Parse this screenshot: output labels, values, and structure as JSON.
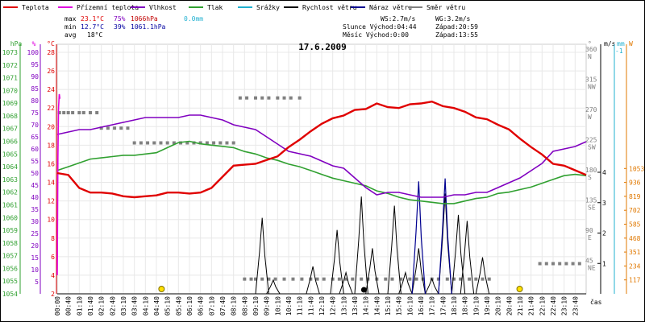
{
  "legend": {
    "items": [
      {
        "label": "Teplota",
        "color": "#e00000"
      },
      {
        "label": "Přízemní teplota",
        "color": "#e000e0"
      },
      {
        "label": "Vlhkost",
        "color": "#8000c0"
      },
      {
        "label": "Tlak",
        "color": "#30a030"
      },
      {
        "label": "Srážky",
        "color": "#20b0d0"
      },
      {
        "label": "Rychlost větru",
        "color": "#000000"
      },
      {
        "label": "Náraz větru",
        "color": "#000090"
      },
      {
        "label": "Směr větru",
        "color": "#808080"
      }
    ]
  },
  "stats": {
    "max": {
      "label": "max",
      "temp": "23.1°C",
      "hum": "75%",
      "press": "1066hPa",
      "rain": "0.0mm"
    },
    "min": {
      "label": "min",
      "temp": "12.7°C",
      "hum": "39%",
      "press": "1061.1hPa"
    },
    "avg": {
      "label": "avg",
      "temp": "18°C"
    },
    "ws": "WS:2.7m/s",
    "wg": "WG:3.2m/s",
    "sun": "Slunce Východ:04:44",
    "sun_set": "Západ:20:59",
    "moon": "Měsíc  Východ:0:00",
    "moon_set": "Západ:13:55"
  },
  "chart_data": {
    "type": "line",
    "title": "17.6.2009",
    "xlabel": "čas",
    "x_ticks": [
      "00:40",
      "01:10",
      "01:40",
      "02:10",
      "02:40",
      "03:10",
      "03:40",
      "04:10",
      "04:40",
      "05:10",
      "05:40",
      "06:10",
      "06:40",
      "07:10",
      "07:40",
      "08:10",
      "08:40",
      "09:10",
      "09:40",
      "10:10",
      "10:40",
      "11:10",
      "11:40",
      "12:10",
      "12:40",
      "13:10",
      "13:40",
      "14:10",
      "14:40",
      "15:10",
      "15:40",
      "16:10",
      "16:40",
      "17:10",
      "17:40",
      "18:10",
      "18:40",
      "19:10",
      "19:40",
      "20:10",
      "20:40",
      "21:10",
      "21:40",
      "22:10",
      "22:40",
      "23:10",
      "23:40"
    ],
    "x_first": "00:00",
    "axes": {
      "pressure": {
        "unit": "hPa",
        "min": 1054,
        "max": 1074,
        "ticks": [
          1054,
          1055,
          1056,
          1057,
          1058,
          1059,
          1060,
          1061,
          1062,
          1063,
          1064,
          1065,
          1066,
          1067,
          1068,
          1069,
          1070,
          1071,
          1072,
          1073
        ]
      },
      "humidity": {
        "unit": "%",
        "min": 0,
        "max": 100,
        "ticks": [
          5,
          10,
          15,
          20,
          25,
          30,
          35,
          40,
          45,
          50,
          55,
          60,
          65,
          70,
          75,
          80,
          85,
          90,
          95,
          100
        ]
      },
      "temperature": {
        "unit": "°C",
        "min": 2,
        "max": 28,
        "ticks": [
          2,
          4,
          6,
          8,
          10,
          12,
          14,
          16,
          18,
          20,
          22,
          24,
          26,
          28
        ]
      },
      "wind_dir": {
        "unit": "°",
        "ticks": [
          {
            "v": "45",
            "d": "NE"
          },
          {
            "v": "90",
            "d": "E"
          },
          {
            "v": "135",
            "d": "SE"
          },
          {
            "v": "180",
            "d": "S"
          },
          {
            "v": "225",
            "d": "SW"
          },
          {
            "v": "270",
            "d": "W"
          },
          {
            "v": "315",
            "d": "NW"
          },
          {
            "v": "360",
            "d": "N"
          }
        ]
      },
      "wind_speed": {
        "unit": "m/s",
        "ticks": [
          1,
          2,
          3,
          4
        ]
      },
      "rain": {
        "unit": "mm",
        "ticks": [
          "-1"
        ]
      },
      "solar": {
        "unit": "W",
        "ticks": [
          117,
          234,
          351,
          468,
          585,
          702,
          819,
          936,
          1053
        ]
      }
    },
    "sun_markers": [
      "04:44",
      "20:59"
    ],
    "moon_marker": "13:55",
    "series": [
      {
        "name": "Teplota",
        "color": "#e00000",
        "axis": "temperature",
        "x": [
          0,
          0.5,
          1,
          1.5,
          2,
          2.5,
          3,
          3.5,
          4,
          4.5,
          5,
          5.5,
          6,
          6.5,
          7,
          7.5,
          8,
          8.5,
          9,
          9.5,
          10,
          10.5,
          11,
          11.5,
          12,
          12.5,
          13,
          13.5,
          14,
          14.5,
          15,
          15.5,
          16,
          16.5,
          17,
          17.5,
          18,
          18.5,
          19,
          19.5,
          20,
          20.5,
          21,
          21.5,
          22,
          22.5,
          23,
          23.5,
          24
        ],
        "y": [
          15.0,
          14.8,
          13.4,
          12.9,
          12.9,
          12.8,
          12.5,
          12.4,
          12.5,
          12.6,
          12.9,
          12.9,
          12.8,
          12.9,
          13.4,
          14.6,
          15.8,
          15.9,
          16.0,
          16.4,
          16.8,
          17.8,
          18.6,
          19.5,
          20.3,
          20.9,
          21.2,
          21.8,
          21.9,
          22.5,
          22.1,
          22.0,
          22.4,
          22.5,
          22.7,
          22.2,
          22.0,
          21.6,
          21.0,
          20.8,
          20.2,
          19.7,
          18.7,
          17.8,
          17.0,
          16.0,
          15.8,
          15.3,
          14.8
        ]
      },
      {
        "name": "Přízemní teplota",
        "color": "#e000e0",
        "axis": "temperature",
        "x": [
          0,
          0.03,
          0.06,
          0.09,
          0.12
        ],
        "y": [
          4.0,
          16.5,
          22.0,
          23.5,
          23.0
        ]
      },
      {
        "name": "Vlhkost",
        "color": "#8000c0",
        "axis": "humidity",
        "x": [
          0,
          0.5,
          1,
          1.5,
          2,
          2.5,
          3,
          3.5,
          4,
          4.5,
          5,
          5.5,
          6,
          6.5,
          7,
          7.5,
          8,
          8.5,
          9,
          9.5,
          10,
          10.5,
          11,
          11.5,
          12,
          12.5,
          13,
          13.5,
          14,
          14.5,
          15,
          15.5,
          16,
          16.5,
          17,
          17.5,
          18,
          18.5,
          19,
          19.5,
          20,
          20.5,
          21,
          21.5,
          22,
          22.5,
          23,
          23.5,
          24
        ],
        "y": [
          66,
          67,
          68,
          68,
          69,
          70,
          71,
          72,
          73,
          73,
          73,
          73,
          74,
          74,
          73,
          72,
          70,
          69,
          68,
          65,
          62,
          59,
          58,
          57,
          55,
          53,
          52,
          48,
          44,
          41,
          42,
          42,
          41,
          40,
          40,
          40,
          41,
          41,
          42,
          42,
          44,
          46,
          48,
          51,
          54,
          59,
          60,
          61,
          63
        ]
      },
      {
        "name": "Tlak",
        "color": "#30a030",
        "axis": "pressure",
        "x": [
          0,
          0.5,
          1,
          1.5,
          2,
          2.5,
          3,
          3.5,
          4,
          4.5,
          5,
          5.5,
          6,
          6.5,
          7,
          7.5,
          8,
          8.5,
          9,
          9.5,
          10,
          10.5,
          11,
          11.5,
          12,
          12.5,
          13,
          13.5,
          14,
          14.5,
          15,
          15.5,
          16,
          16.5,
          17,
          17.5,
          18,
          18.5,
          19,
          19.5,
          20,
          20.5,
          21,
          21.5,
          22,
          22.5,
          23,
          23.5,
          24
        ],
        "y": [
          1063.7,
          1064.0,
          1064.3,
          1064.6,
          1064.7,
          1064.8,
          1064.9,
          1064.9,
          1065.0,
          1065.1,
          1065.5,
          1065.9,
          1066.0,
          1065.8,
          1065.7,
          1065.6,
          1065.5,
          1065.2,
          1065.0,
          1064.7,
          1064.5,
          1064.2,
          1064.0,
          1063.7,
          1063.4,
          1063.1,
          1062.9,
          1062.7,
          1062.5,
          1062.1,
          1061.9,
          1061.6,
          1061.4,
          1061.3,
          1061.2,
          1061.1,
          1061.1,
          1061.3,
          1061.5,
          1061.6,
          1061.9,
          1062.0,
          1062.2,
          1062.4,
          1062.7,
          1063.0,
          1063.3,
          1063.4,
          1063.3
        ]
      },
      {
        "name": "Rychlost větru",
        "color": "#000000",
        "axis": "wind_speed",
        "peaks": [
          {
            "t": 9.3,
            "v": 2.5
          },
          {
            "t": 9.8,
            "v": 0.45
          },
          {
            "t": 11.6,
            "v": 0.9
          },
          {
            "t": 12.7,
            "v": 2.1
          },
          {
            "t": 13.1,
            "v": 0.7
          },
          {
            "t": 13.8,
            "v": 3.2
          },
          {
            "t": 14.3,
            "v": 1.5
          },
          {
            "t": 15.3,
            "v": 2.9
          },
          {
            "t": 15.8,
            "v": 0.7
          },
          {
            "t": 16.4,
            "v": 1.5
          },
          {
            "t": 17.0,
            "v": 0.5
          },
          {
            "t": 17.6,
            "v": 3.3
          },
          {
            "t": 18.2,
            "v": 2.6
          },
          {
            "t": 18.6,
            "v": 2.4
          },
          {
            "t": 19.3,
            "v": 1.2
          }
        ]
      },
      {
        "name": "Náraz větru",
        "color": "#000090",
        "axis": "wind_speed",
        "peaks": [
          {
            "t": 16.4,
            "v": 3.7
          },
          {
            "t": 17.6,
            "v": 3.8
          }
        ]
      },
      {
        "name": "Směr větru",
        "color": "#808080",
        "axis": "wind_dir",
        "points": [
          [
            0.1,
            270
          ],
          [
            0.3,
            270
          ],
          [
            0.5,
            270
          ],
          [
            0.7,
            270
          ],
          [
            1.0,
            270
          ],
          [
            1.2,
            270
          ],
          [
            1.5,
            270
          ],
          [
            1.8,
            270
          ],
          [
            2.0,
            247
          ],
          [
            2.3,
            247
          ],
          [
            2.6,
            247
          ],
          [
            2.9,
            247
          ],
          [
            3.2,
            247
          ],
          [
            3.5,
            225
          ],
          [
            3.8,
            225
          ],
          [
            4.1,
            225
          ],
          [
            4.4,
            225
          ],
          [
            4.7,
            225
          ],
          [
            5.0,
            225
          ],
          [
            5.3,
            225
          ],
          [
            5.6,
            225
          ],
          [
            5.9,
            225
          ],
          [
            6.2,
            225
          ],
          [
            6.5,
            225
          ],
          [
            6.8,
            225
          ],
          [
            7.1,
            225
          ],
          [
            7.4,
            225
          ],
          [
            7.7,
            225
          ],
          [
            8.0,
            225
          ],
          [
            8.3,
            292
          ],
          [
            8.6,
            292
          ],
          [
            9.0,
            292
          ],
          [
            9.3,
            292
          ],
          [
            9.6,
            292
          ],
          [
            10.0,
            292
          ],
          [
            10.3,
            292
          ],
          [
            10.6,
            292
          ],
          [
            11.0,
            292
          ],
          [
            8.5,
            22
          ],
          [
            8.8,
            22
          ],
          [
            9.0,
            22
          ],
          [
            9.3,
            22
          ],
          [
            9.6,
            22
          ],
          [
            9.9,
            22
          ],
          [
            10.3,
            22
          ],
          [
            10.7,
            22
          ],
          [
            11.1,
            22
          ],
          [
            11.5,
            22
          ],
          [
            11.8,
            22
          ],
          [
            12.1,
            22
          ],
          [
            12.5,
            22
          ],
          [
            12.8,
            22
          ],
          [
            13.1,
            22
          ],
          [
            13.4,
            22
          ],
          [
            13.8,
            22
          ],
          [
            14.1,
            22
          ],
          [
            14.5,
            22
          ],
          [
            14.9,
            22
          ],
          [
            15.2,
            22
          ],
          [
            15.6,
            22
          ],
          [
            16.0,
            22
          ],
          [
            16.3,
            22
          ],
          [
            16.6,
            22
          ],
          [
            17.0,
            22
          ],
          [
            17.3,
            22
          ],
          [
            17.7,
            22
          ],
          [
            18.0,
            22
          ],
          [
            18.3,
            22
          ],
          [
            18.7,
            22
          ],
          [
            19.0,
            22
          ],
          [
            19.3,
            22
          ],
          [
            19.6,
            22
          ],
          [
            21.9,
            45
          ],
          [
            22.2,
            45
          ],
          [
            22.5,
            45
          ],
          [
            22.8,
            45
          ],
          [
            23.1,
            45
          ],
          [
            23.4,
            45
          ],
          [
            23.7,
            45
          ]
        ]
      }
    ]
  }
}
